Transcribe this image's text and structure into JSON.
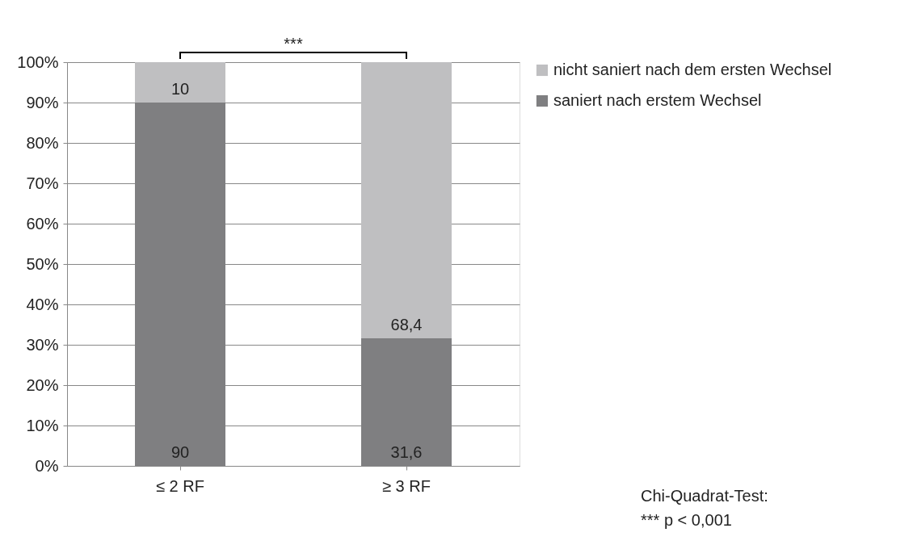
{
  "chart_data": {
    "type": "bar",
    "stacked": true,
    "categories": [
      "≤ 2 RF",
      "≥ 3 RF"
    ],
    "series": [
      {
        "name": "saniert nach erstem Wechsel",
        "color": "#7f7f81",
        "values": [
          90,
          31.6
        ],
        "value_labels": [
          "90",
          "31,6"
        ]
      },
      {
        "name": "nicht saniert nach dem ersten Wechsel",
        "color": "#bfbfc1",
        "values": [
          10,
          68.4
        ],
        "value_labels": [
          "10",
          "68,4"
        ]
      }
    ],
    "ylim": [
      0,
      100
    ],
    "yticks": [
      {
        "value": 0,
        "label": "0%"
      },
      {
        "value": 10,
        "label": "10%"
      },
      {
        "value": 20,
        "label": "20%"
      },
      {
        "value": 30,
        "label": "30%"
      },
      {
        "value": 40,
        "label": "40%"
      },
      {
        "value": 50,
        "label": "50%"
      },
      {
        "value": 60,
        "label": "60%"
      },
      {
        "value": 70,
        "label": "70%"
      },
      {
        "value": 80,
        "label": "80%"
      },
      {
        "value": 90,
        "label": "90%"
      },
      {
        "value": 100,
        "label": "100%"
      }
    ],
    "grid": "y",
    "legend": "right",
    "annotations": [
      "***",
      "Chi-Quadrat-Test:",
      "*** p < 0,001"
    ]
  }
}
